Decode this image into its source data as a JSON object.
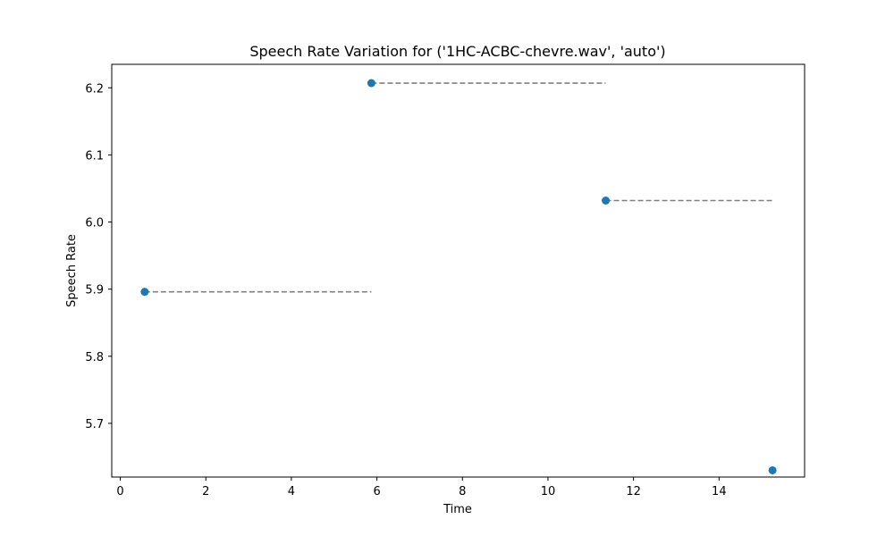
{
  "chart_data": {
    "type": "scatter",
    "title": "Speech Rate Variation for ('1HC-ACBC-chevre.wav', 'auto')",
    "xlabel": "Time",
    "ylabel": "Speech Rate",
    "xlim": [
      -0.2,
      16.0
    ],
    "ylim": [
      5.62,
      6.235
    ],
    "xticks": [
      0,
      2,
      4,
      6,
      8,
      10,
      12,
      14
    ],
    "yticks": [
      5.7,
      5.8,
      5.9,
      6.0,
      6.1,
      6.2
    ],
    "xtick_labels": [
      "0",
      "2",
      "4",
      "6",
      "8",
      "10",
      "12",
      "14"
    ],
    "ytick_labels": [
      "5.7",
      "5.8",
      "5.9",
      "6.0",
      "6.1",
      "6.2"
    ],
    "grid": false,
    "marker_color": "#1f77b4",
    "segment_color": "#808080",
    "points": [
      {
        "x": 0.57,
        "y": 5.896
      },
      {
        "x": 5.87,
        "y": 6.207
      },
      {
        "x": 11.35,
        "y": 6.032
      },
      {
        "x": 15.25,
        "y": 5.63
      }
    ],
    "segments": [
      {
        "x0": 0.57,
        "x1": 5.87,
        "y": 5.896
      },
      {
        "x0": 5.87,
        "x1": 11.35,
        "y": 6.207
      },
      {
        "x0": 11.35,
        "x1": 15.25,
        "y": 6.032
      }
    ]
  }
}
